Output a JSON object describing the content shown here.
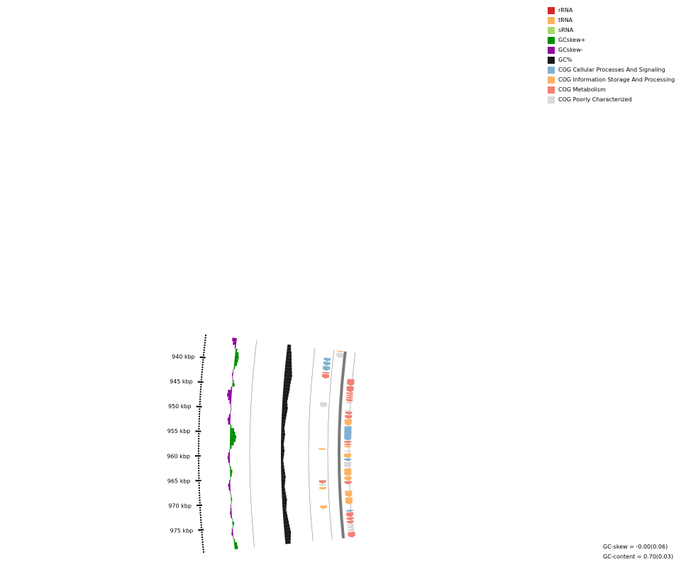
{
  "legend": {
    "items": [
      {
        "key": "rrna",
        "label": "rRNA",
        "color": "#d62728"
      },
      {
        "key": "trna",
        "label": "tRNA",
        "color": "#fdb462"
      },
      {
        "key": "srna",
        "label": "sRNA",
        "color": "#a6d96a"
      },
      {
        "key": "gcskew_pos",
        "label": "GCskew+",
        "color": "#008f00"
      },
      {
        "key": "gcskew_neg",
        "label": "GCskew-",
        "color": "#8e0b9e"
      },
      {
        "key": "gc_percent",
        "label": "GC%",
        "color": "#1a1a1a"
      },
      {
        "key": "cog_cellular",
        "label": "COG Cellular Processes And Signaling",
        "color": "#80b1d3"
      },
      {
        "key": "cog_information",
        "label": "COG Information Storage And Processing",
        "color": "#fdb462"
      },
      {
        "key": "cog_metabolism",
        "label": "COG Metabolism",
        "color": "#f28072"
      },
      {
        "key": "cog_poorly",
        "label": "COG Poorly Characterized",
        "color": "#d9d9d9"
      }
    ]
  },
  "stats": {
    "gc_skew": "GC-skew = -0.00(0.06)",
    "gc_content": "GC-content = 0.70(0.03)"
  },
  "chart_data": {
    "type": "circular genome map (partial arc)",
    "axis_unit": "kbp",
    "range_kbp": [
      935.3,
      979.6
    ],
    "tick_labels": [
      {
        "kbp": 940,
        "label": "940 kbp"
      },
      {
        "kbp": 945,
        "label": "945 kbp"
      },
      {
        "kbp": 950,
        "label": "950 kbp"
      },
      {
        "kbp": 955,
        "label": "955 kbp"
      },
      {
        "kbp": 960,
        "label": "960 kbp"
      },
      {
        "kbp": 965,
        "label": "965 kbp"
      },
      {
        "kbp": 970,
        "label": "970 kbp"
      },
      {
        "kbp": 975,
        "label": "975 kbp"
      }
    ],
    "gc_skew_samples": [
      -0.4,
      -0.3,
      -0.1,
      0.15,
      0.3,
      0.35,
      0.32,
      0.25,
      0.1,
      -0.05,
      -0.1,
      -0.05,
      0.1,
      0.2,
      -0.1,
      -0.35,
      -0.4,
      -0.3,
      -0.15,
      -0.05,
      0.05,
      -0.05,
      -0.15,
      -0.25,
      -0.2,
      0.1,
      0.35,
      0.45,
      0.55,
      0.5,
      0.35,
      0.15,
      -0.05,
      -0.15,
      -0.2,
      -0.15,
      -0.05,
      0.1,
      0.2,
      0.15,
      0.05,
      -0.1,
      -0.2,
      -0.15,
      -0.05,
      0.05,
      0.1,
      0.05,
      -0.05,
      -0.1,
      -0.15,
      -0.1,
      0.05,
      0.15,
      0.05,
      -0.1,
      -0.15,
      -0.05,
      0.1,
      0.25,
      0.3
    ],
    "gc_content_samples": [
      0.05,
      0.06,
      0.08,
      0.09,
      0.1,
      0.11,
      0.12,
      0.13,
      0.14,
      0.15,
      0.14,
      0.13,
      0.12,
      0.12,
      0.11,
      0.1,
      0.09,
      0.08,
      0.09,
      0.1,
      0.09,
      0.08,
      0.07,
      0.06,
      0.05,
      0.04,
      0.05,
      0.06,
      0.05,
      0.04,
      0.03,
      0.04,
      0.05,
      0.04,
      0.03,
      0.02,
      0.03,
      0.04,
      0.05,
      0.06,
      0.07,
      0.06,
      0.05,
      0.04,
      0.05,
      0.06,
      0.07,
      0.08,
      0.07,
      0.06,
      0.05,
      0.06,
      0.07,
      0.08,
      0.09,
      0.1,
      0.11,
      0.12,
      0.11,
      0.1,
      0.09
    ],
    "features_forward_strand": [
      {
        "start": 935.3,
        "end": 935.6,
        "category": "cog_information"
      },
      {
        "start": 935.8,
        "end": 937.0,
        "category": "cog_poorly"
      }
    ],
    "features_reverse_strand": [
      {
        "start": 937.3,
        "end": 938.1,
        "category": "cog_cellular"
      },
      {
        "start": 938.2,
        "end": 939.1,
        "category": "cog_cellular"
      },
      {
        "start": 939.2,
        "end": 940.3,
        "category": "cog_cellular"
      },
      {
        "start": 940.6,
        "end": 941.0,
        "category": "cog_metabolism"
      },
      {
        "start": 941.1,
        "end": 942.1,
        "category": "cog_metabolism"
      },
      {
        "start": 947.6,
        "end": 948.8,
        "category": "cog_poorly"
      },
      {
        "start": 958.3,
        "end": 958.7,
        "category": "cog_information"
      },
      {
        "start": 965.7,
        "end": 966.5,
        "category": "cog_metabolism"
      },
      {
        "start": 966.6,
        "end": 967.1,
        "category": "cog_poorly"
      },
      {
        "start": 967.3,
        "end": 967.9,
        "category": "cog_information"
      },
      {
        "start": 971.6,
        "end": 972.4,
        "category": "cog_information"
      }
    ],
    "features_outer_strand": [
      {
        "start": 941.7,
        "end": 943.3,
        "category": "cog_metabolism"
      },
      {
        "start": 943.4,
        "end": 944.8,
        "category": "cog_metabolism"
      },
      {
        "start": 944.9,
        "end": 945.4,
        "category": "cog_metabolism"
      },
      {
        "start": 945.5,
        "end": 945.9,
        "category": "cog_metabolism"
      },
      {
        "start": 946.0,
        "end": 946.4,
        "category": "cog_metabolism"
      },
      {
        "start": 946.5,
        "end": 947.1,
        "category": "cog_metabolism"
      },
      {
        "start": 947.2,
        "end": 947.6,
        "category": "cog_poorly"
      },
      {
        "start": 949.1,
        "end": 949.4,
        "category": "cog_poorly"
      },
      {
        "start": 949.5,
        "end": 950.2,
        "category": "cog_metabolism"
      },
      {
        "start": 950.3,
        "end": 951.2,
        "category": "cog_metabolism"
      },
      {
        "start": 951.3,
        "end": 952.8,
        "category": "cog_information"
      },
      {
        "start": 953.0,
        "end": 956.4,
        "category": "cog_cellular"
      },
      {
        "start": 956.5,
        "end": 957.1,
        "category": "cog_metabolism"
      },
      {
        "start": 957.2,
        "end": 957.6,
        "category": "cog_metabolism"
      },
      {
        "start": 957.7,
        "end": 958.1,
        "category": "cog_information"
      },
      {
        "start": 958.8,
        "end": 959.1,
        "category": "cog_poorly"
      },
      {
        "start": 959.5,
        "end": 960.6,
        "category": "cog_information"
      },
      {
        "start": 960.7,
        "end": 961.3,
        "category": "cog_cellular"
      },
      {
        "start": 961.5,
        "end": 962.9,
        "category": "cog_poorly"
      },
      {
        "start": 963.1,
        "end": 964.9,
        "category": "cog_information"
      },
      {
        "start": 965.0,
        "end": 966.0,
        "category": "cog_information"
      },
      {
        "start": 966.1,
        "end": 966.9,
        "category": "cog_metabolism"
      },
      {
        "start": 968.4,
        "end": 969.9,
        "category": "cog_information"
      },
      {
        "start": 970.0,
        "end": 971.7,
        "category": "cog_information"
      },
      {
        "start": 973.0,
        "end": 973.5,
        "category": "cog_cellular"
      },
      {
        "start": 973.6,
        "end": 974.7,
        "category": "cog_metabolism"
      },
      {
        "start": 974.8,
        "end": 975.5,
        "category": "cog_metabolism"
      },
      {
        "start": 975.6,
        "end": 976.3,
        "category": "cog_metabolism"
      },
      {
        "start": 976.4,
        "end": 976.7,
        "category": "cog_poorly"
      },
      {
        "start": 976.8,
        "end": 977.5,
        "category": "cog_poorly"
      },
      {
        "start": 977.6,
        "end": 978.2,
        "category": "cog_poorly"
      },
      {
        "start": 978.3,
        "end": 979.6,
        "category": "cog_metabolism"
      }
    ]
  }
}
